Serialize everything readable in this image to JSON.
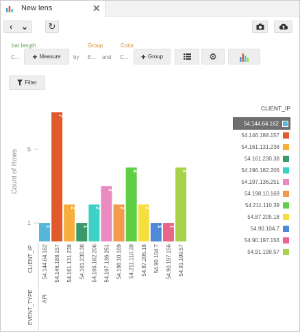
{
  "tab": {
    "title": "New lens",
    "icon": "bar-chart-icon",
    "close_icon": "close-icon"
  },
  "toolbar": {
    "back_icon": "chevron-left-icon",
    "dropdown_icon": "chevron-down-icon",
    "refresh_icon": "refresh-icon",
    "snapshot_icon": "camera-icon",
    "upload_icon": "cloud-upload-icon"
  },
  "encodings": {
    "bar_length_label": "bar length",
    "bar_length_value": "C...",
    "measure_button": "Measure",
    "by_label": "by",
    "by_value": "E...",
    "group_label": "Group",
    "group_value": "CL...",
    "and_label": "and",
    "color_label": "Color",
    "color_value": "C...",
    "group_button": "Group",
    "list_icon": "list-icon",
    "gear_icon": "gear-icon",
    "chart_type_icon": "bar-chart-icon"
  },
  "filter": {
    "label": "Filter",
    "icon": "filter-icon"
  },
  "chart_data": {
    "type": "bar",
    "ylabel": "Count of Rows",
    "yticks": [
      1,
      5
    ],
    "ylim": [
      0,
      7.5
    ],
    "dimension_labels": [
      "CLIENT_IP",
      "EVENT_TYPE"
    ],
    "event_type_value": "API",
    "categories": [
      "54.144.64.162",
      "54.146.188.157",
      "54.161.131.238",
      "54.161.230.38",
      "54.196.182.206",
      "54.197.136.251",
      "54.198.10.169",
      "54.211.110.39",
      "54.87.205.18",
      "54.90.104.7",
      "54.90.197.156",
      "54.91.199.57"
    ],
    "values": [
      1,
      7,
      2,
      1,
      2,
      3,
      2,
      4,
      2,
      1,
      1,
      4
    ],
    "colors": [
      "#57b7da",
      "#e05a2b",
      "#f7ae3c",
      "#3a9a6a",
      "#3fd1c6",
      "#e98bc0",
      "#f39a4c",
      "#5fcf46",
      "#f4df3f",
      "#4f8ad8",
      "#e8668a",
      "#a9d24c"
    ]
  },
  "legend": {
    "title": "CLIENT_IP",
    "selected_index": 0,
    "items": [
      "54.144.64.162",
      "54.146.188.157",
      "54.161.131.238",
      "54.161.230.38",
      "54.196.182.206",
      "54.197.136.251",
      "54.198.10.169",
      "54.211.110.39",
      "54.87.205.18",
      "54.90.104.7",
      "54.90.197.156",
      "54.91.199.57"
    ]
  }
}
